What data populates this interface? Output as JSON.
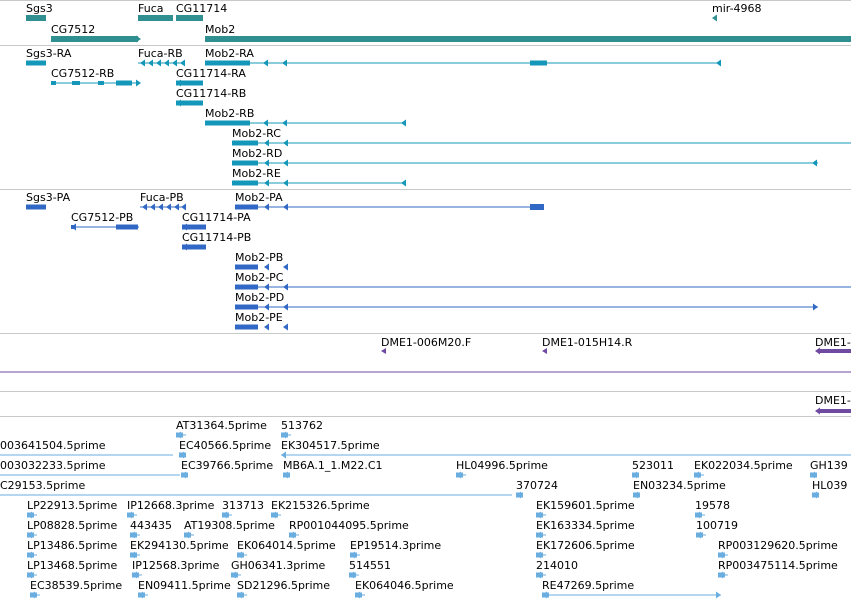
{
  "colors": {
    "gene": "#2f8f91",
    "mrna": "#1497b8",
    "protein": "#3168c6",
    "clone": "#6e4aa0",
    "est": "#6aaee0",
    "separator": "#c8c8c8"
  },
  "tracks": {
    "gene": {
      "labels": [
        "Sgs3",
        "Fuca",
        "CG11714",
        "mir-4968",
        "CG7512",
        "Mob2"
      ]
    },
    "mrna": {
      "labels": [
        "Sgs3-RA",
        "Fuca-RB",
        "Mob2-RA",
        "CG7512-RB",
        "CG11714-RA",
        "CG11714-RB",
        "Mob2-RB",
        "Mob2-RC",
        "Mob2-RD",
        "Mob2-RE"
      ]
    },
    "protein": {
      "labels": [
        "Sgs3-PA",
        "Fuca-PB",
        "Mob2-PA",
        "CG7512-PB",
        "CG11714-PA",
        "CG11714-PB",
        "Mob2-PB",
        "Mob2-PC",
        "Mob2-PD",
        "Mob2-PE"
      ]
    },
    "clone": {
      "labels": [
        "DME1-006M20.F",
        "DME1-015H14.R",
        "DME1-"
      ],
      "labels2": [
        "DME1-"
      ]
    },
    "est": {
      "labels": [
        "AT31364.5prime",
        "513762",
        "003641504.5prime",
        "EC40566.5prime",
        "EK304517.5prime",
        "003032233.5prime",
        "EC39766.5prime",
        "MB6A.1_1.M22.C1",
        "HL04996.5prime",
        "523011",
        "EK022034.5prime",
        "GH139",
        "C29153.5prime",
        "370724",
        "EN03234.5prime",
        "HL039",
        "LP22913.5prime",
        "IP12668.3prime",
        "313713",
        "EK215326.5prime",
        "EK159601.5prime",
        "19578",
        "LP08828.5prime",
        "443435",
        "AT19308.5prime",
        "RP001044095.5prime",
        "EK163334.5prime",
        "100719",
        "LP13486.5prime",
        "EK294130.5prime",
        "EK064014.5prime",
        "EP19514.3prime",
        "EK172606.5prime",
        "RP003129620.5prime",
        "LP13468.5prime",
        "IP12568.3prime",
        "GH06341.3prime",
        "514551",
        "214010",
        "RP003475114.5prime",
        "EC38539.5prime",
        "EN09411.5prime",
        "SD21296.5prime",
        "EK064046.5prime",
        "RE47269.5prime"
      ]
    }
  }
}
